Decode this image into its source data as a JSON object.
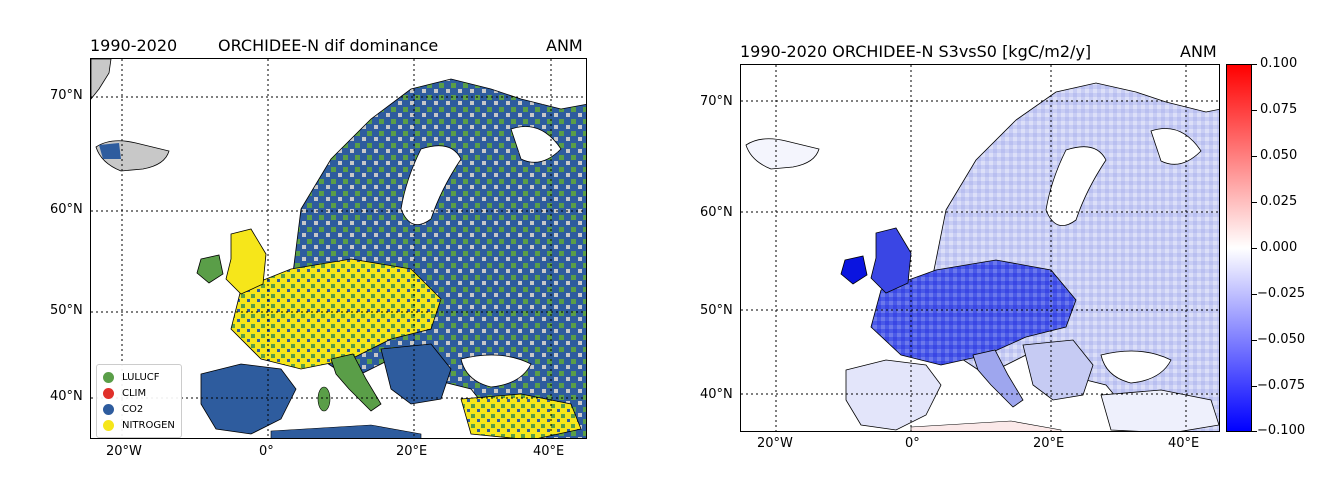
{
  "left_map": {
    "title_left": "1990-2020",
    "title_center": "ORCHIDEE-N dif dominance",
    "title_right": "ANM",
    "lat_labels": [
      "70°N",
      "60°N",
      "50°N",
      "40°N"
    ],
    "lon_labels": [
      "20°W",
      "0°",
      "20°E",
      "40°E"
    ],
    "legend": [
      {
        "label": "LULUCF",
        "color": "#5a9e48"
      },
      {
        "label": "CLIM",
        "color": "#e0302a"
      },
      {
        "label": "CO2",
        "color": "#2e5c9e"
      },
      {
        "label": "NITROGEN",
        "color": "#f6e61a"
      }
    ]
  },
  "right_map": {
    "title_left": "1990-2020 ORCHIDEE-N S3vsS0 [kgC/m2/y]",
    "title_right": "ANM",
    "lat_labels": [
      "70°N",
      "60°N",
      "50°N",
      "40°N"
    ],
    "lon_labels": [
      "20°W",
      "0°",
      "20°E",
      "40°E"
    ],
    "colorbar_ticks": [
      "0.100",
      "0.075",
      "0.050",
      "0.025",
      "0.000",
      "−0.025",
      "−0.050",
      "−0.075",
      "−0.100"
    ],
    "colorbar_colors": {
      "max": "#ff0000",
      "mid": "#ffffff",
      "min": "#0000ff"
    }
  },
  "colors": {
    "ocean": "#ffffff",
    "no_data": "#c8c8c8",
    "coast": "#000000"
  }
}
